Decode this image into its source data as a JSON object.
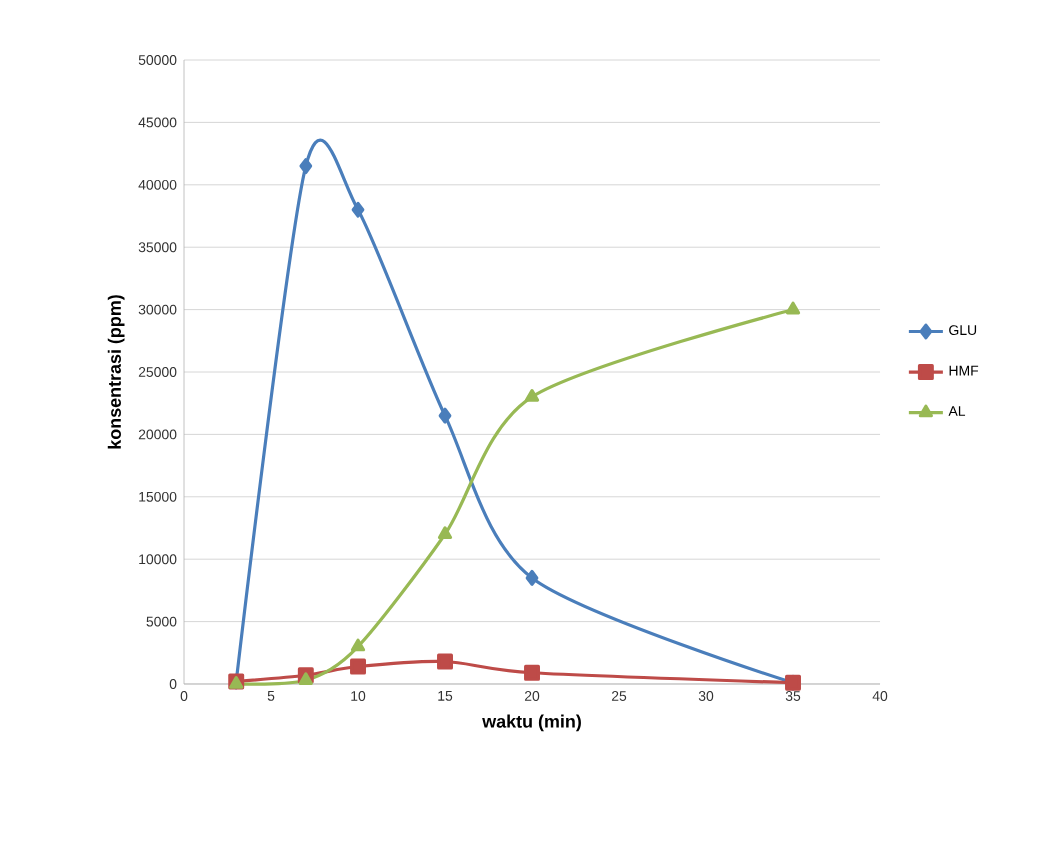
{
  "chart_data": {
    "type": "line",
    "xlabel": "waktu (min)",
    "ylabel": "konsentrasi (ppm)",
    "x": [
      3,
      7,
      10,
      15,
      20,
      35
    ],
    "series": [
      {
        "name": "GLU",
        "color": "#4a7ebb",
        "marker": "diamond",
        "values": [
          200,
          41500,
          38000,
          21500,
          8500,
          100
        ]
      },
      {
        "name": "HMF",
        "color": "#be4b48",
        "marker": "square",
        "values": [
          200,
          700,
          1400,
          1800,
          900,
          100
        ]
      },
      {
        "name": "AL",
        "color": "#98b954",
        "marker": "triangle",
        "values": [
          0,
          300,
          3000,
          12000,
          23000,
          30000
        ]
      }
    ],
    "xlim": [
      0,
      40
    ],
    "xticks": [
      0,
      5,
      10,
      15,
      20,
      25,
      30,
      35,
      40
    ],
    "ylim": [
      0,
      50000
    ],
    "yticks": [
      0,
      5000,
      10000,
      15000,
      20000,
      25000,
      30000,
      35000,
      40000,
      45000,
      50000
    ],
    "grid": "y",
    "legend": "right",
    "line_style": "solid"
  }
}
